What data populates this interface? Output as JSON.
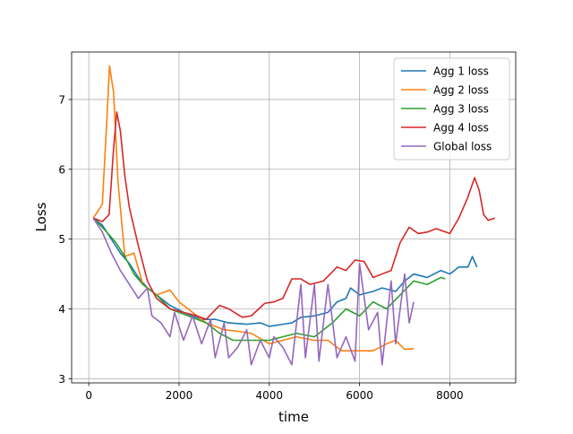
{
  "chart_data": {
    "type": "line",
    "xlabel": "time",
    "ylabel": "Loss",
    "xlim": [
      -380,
      9460
    ],
    "ylim": [
      2.94,
      7.68
    ],
    "xticks": [
      0,
      2000,
      4000,
      6000,
      8000
    ],
    "yticks": [
      3,
      4,
      5,
      6,
      7
    ],
    "grid": true,
    "legend": "upper right",
    "series": [
      {
        "name": "Agg 1 loss",
        "color": "#1f77b4",
        "x": [
          100,
          300,
          500,
          700,
          900,
          1100,
          1300,
          1500,
          1800,
          2100,
          2500,
          2800,
          3100,
          3500,
          3800,
          4000,
          4300,
          4500,
          4700,
          5000,
          5300,
          5500,
          5700,
          5800,
          6000,
          6300,
          6500,
          6800,
          7000,
          7200,
          7500,
          7800,
          8000,
          8200,
          8400,
          8500,
          8600
        ],
        "values": [
          5.3,
          5.2,
          5.0,
          4.8,
          4.65,
          4.45,
          4.3,
          4.2,
          4.05,
          3.95,
          3.85,
          3.85,
          3.8,
          3.78,
          3.8,
          3.75,
          3.78,
          3.8,
          3.88,
          3.9,
          3.95,
          4.1,
          4.15,
          4.3,
          4.2,
          4.25,
          4.3,
          4.25,
          4.4,
          4.5,
          4.45,
          4.55,
          4.5,
          4.6,
          4.6,
          4.75,
          4.6
        ]
      },
      {
        "name": "Agg 2 loss",
        "color": "#ff7f0e",
        "x": [
          100,
          300,
          400,
          460,
          550,
          650,
          800,
          1000,
          1200,
          1500,
          1800,
          2000,
          2300,
          2600,
          3000,
          3300,
          3600,
          4000,
          4300,
          4600,
          5000,
          5300,
          5600,
          6000,
          6300,
          6600,
          6800,
          7000,
          7200
        ],
        "values": [
          5.3,
          5.5,
          6.7,
          7.48,
          7.1,
          5.8,
          4.75,
          4.8,
          4.35,
          4.2,
          4.27,
          4.1,
          3.95,
          3.8,
          3.7,
          3.68,
          3.65,
          3.5,
          3.55,
          3.6,
          3.55,
          3.55,
          3.4,
          3.4,
          3.4,
          3.5,
          3.55,
          3.42,
          3.43
        ]
      },
      {
        "name": "Agg 3 loss",
        "color": "#2ca02c",
        "x": [
          100,
          400,
          600,
          800,
          1000,
          1200,
          1500,
          1800,
          2200,
          2600,
          2900,
          3200,
          3600,
          4000,
          4300,
          4600,
          5000,
          5400,
          5700,
          6000,
          6300,
          6600,
          6900,
          7200,
          7500,
          7800,
          7900
        ],
        "values": [
          5.3,
          5.1,
          4.95,
          4.75,
          4.5,
          4.35,
          4.2,
          4.0,
          3.9,
          3.8,
          3.65,
          3.55,
          3.55,
          3.55,
          3.6,
          3.65,
          3.6,
          3.8,
          4.0,
          3.9,
          4.1,
          4.0,
          4.2,
          4.4,
          4.35,
          4.45,
          4.43
        ]
      },
      {
        "name": "Agg 4 loss",
        "color": "#d62728",
        "x": [
          100,
          300,
          450,
          550,
          620,
          700,
          800,
          900,
          1100,
          1300,
          1500,
          1800,
          2100,
          2400,
          2600,
          2900,
          3100,
          3400,
          3600,
          3900,
          4100,
          4300,
          4500,
          4700,
          4900,
          5200,
          5500,
          5700,
          5900,
          6100,
          6300,
          6500,
          6700,
          6900,
          7100,
          7300,
          7500,
          7700,
          8000,
          8200,
          8400,
          8550,
          8650,
          8750,
          8850,
          9000
        ],
        "values": [
          5.3,
          5.25,
          5.35,
          6.3,
          6.82,
          6.55,
          5.9,
          5.45,
          4.9,
          4.4,
          4.15,
          4.0,
          3.95,
          3.9,
          3.85,
          4.05,
          4.0,
          3.88,
          3.9,
          4.08,
          4.1,
          4.15,
          4.43,
          4.43,
          4.35,
          4.4,
          4.6,
          4.55,
          4.7,
          4.68,
          4.45,
          4.5,
          4.55,
          4.95,
          5.17,
          5.08,
          5.1,
          5.15,
          5.08,
          5.3,
          5.6,
          5.88,
          5.7,
          5.35,
          5.27,
          5.3
        ]
      },
      {
        "name": "Global loss",
        "color": "#9467bd",
        "x": [
          100,
          300,
          500,
          700,
          900,
          1100,
          1300,
          1400,
          1600,
          1800,
          1900,
          2100,
          2300,
          2500,
          2700,
          2800,
          3000,
          3100,
          3300,
          3500,
          3600,
          3800,
          4000,
          4100,
          4300,
          4500,
          4700,
          4800,
          5000,
          5100,
          5300,
          5500,
          5700,
          5900,
          6000,
          6200,
          6400,
          6500,
          6700,
          6800,
          7000,
          7100,
          7200
        ],
        "values": [
          5.3,
          5.1,
          4.8,
          4.55,
          4.35,
          4.15,
          4.3,
          3.9,
          3.8,
          3.6,
          3.95,
          3.55,
          3.9,
          3.5,
          3.85,
          3.3,
          3.8,
          3.3,
          3.45,
          3.7,
          3.2,
          3.55,
          3.3,
          3.6,
          3.45,
          3.2,
          4.35,
          3.3,
          4.35,
          3.25,
          4.35,
          3.3,
          3.6,
          3.25,
          4.65,
          3.7,
          3.95,
          3.2,
          4.4,
          3.5,
          4.5,
          3.8,
          4.1
        ]
      }
    ]
  }
}
